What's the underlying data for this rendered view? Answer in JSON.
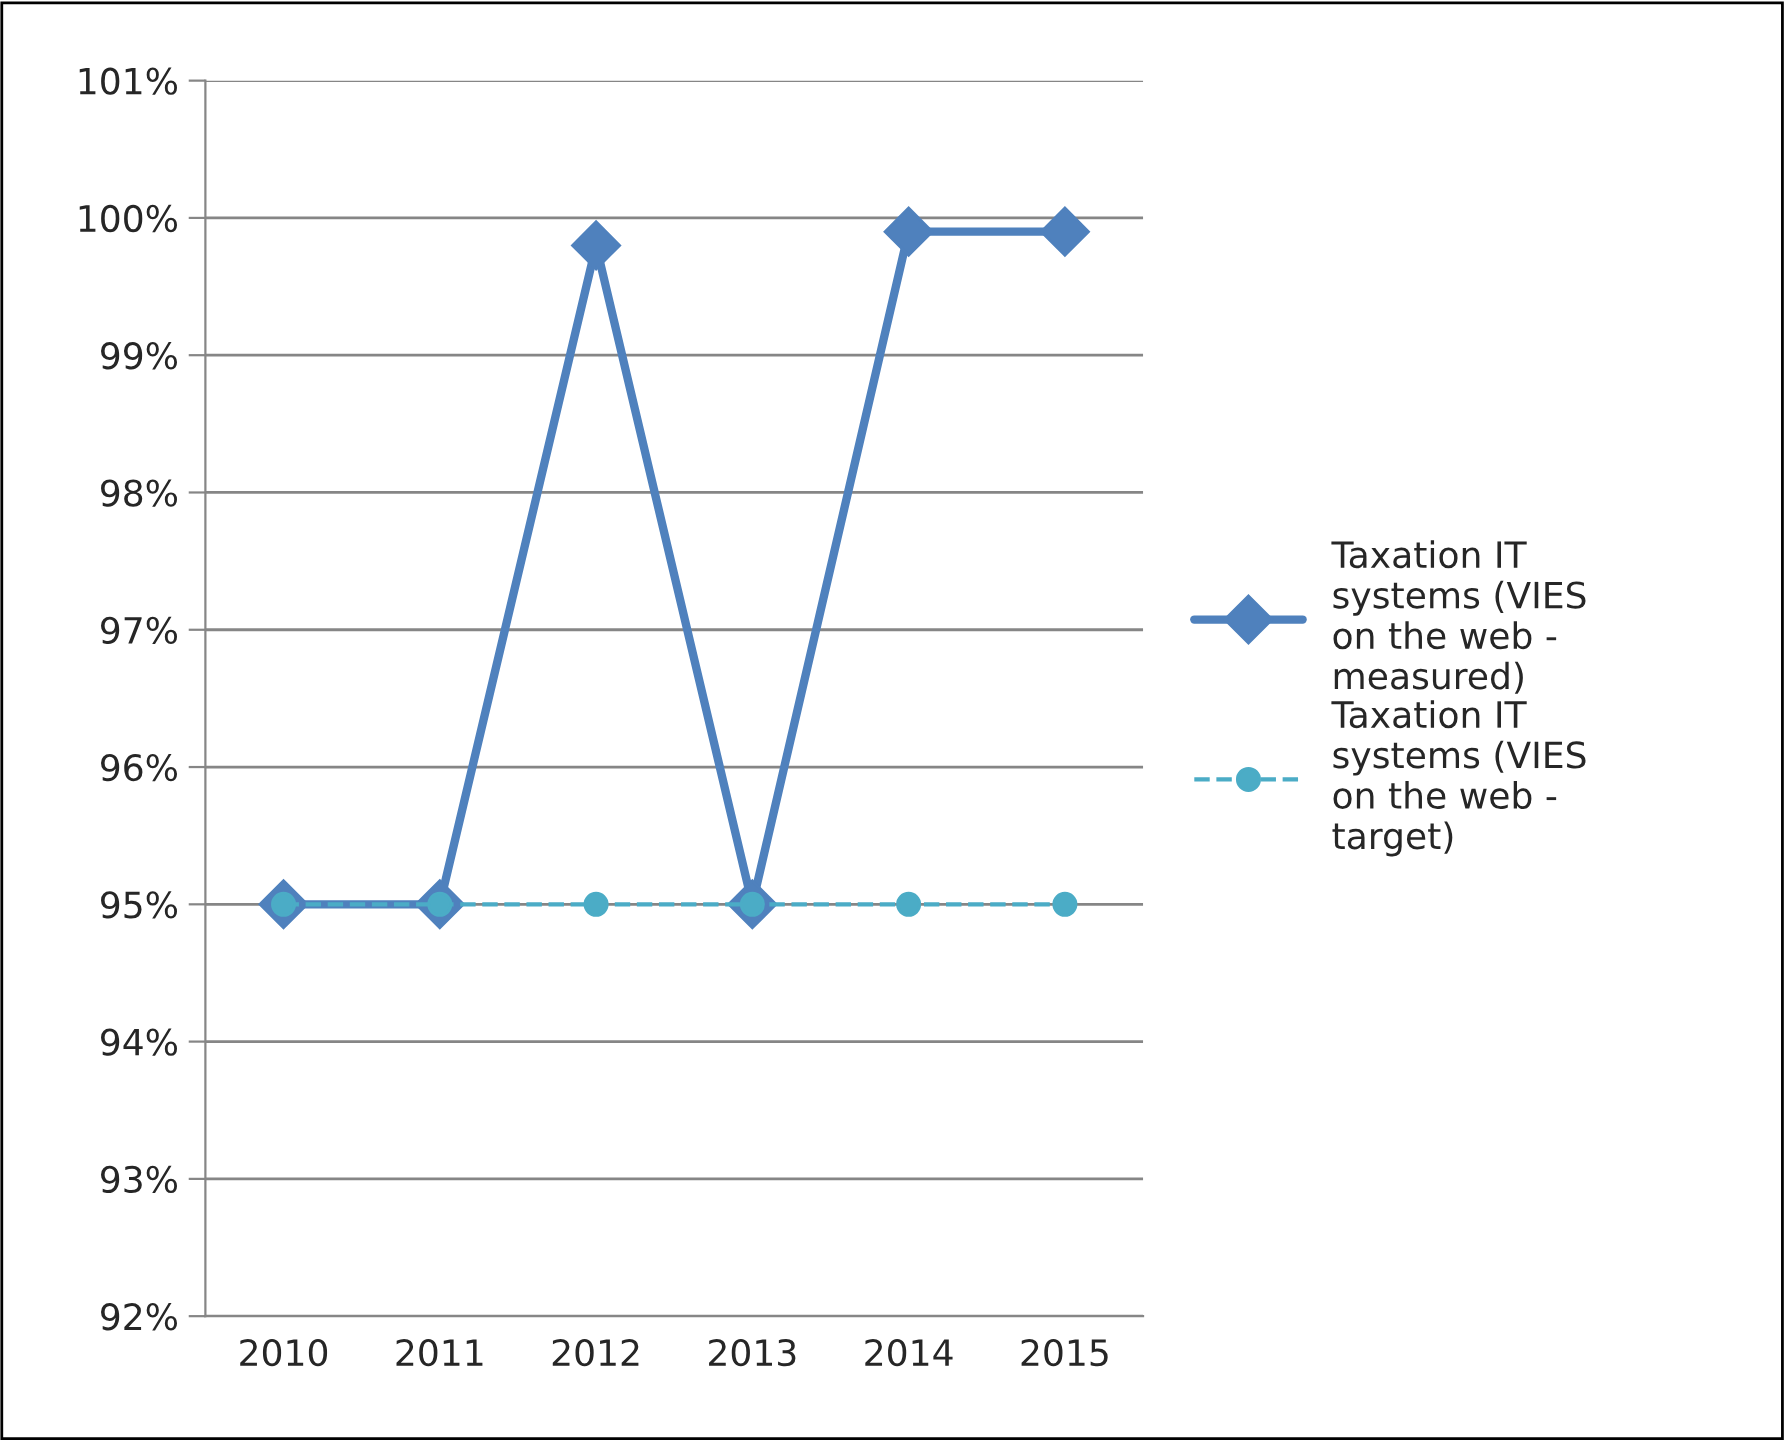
{
  "chart_data": {
    "type": "line",
    "categories": [
      "2010",
      "2011",
      "2012",
      "2013",
      "2014",
      "2015"
    ],
    "series": [
      {
        "name": "Taxation IT systems (VIES on the web - measured)",
        "color": "#4f81bd",
        "values": [
          95,
          95,
          99.8,
          95,
          99.9,
          99.9
        ],
        "marker": "diamond",
        "line_style": "solid"
      },
      {
        "name": "Taxation IT systems (VIES on the web - target)",
        "color": "#4bacc6",
        "values": [
          95,
          95,
          95,
          95,
          95,
          95
        ],
        "marker": "circle",
        "line_style": "dashed"
      }
    ],
    "ylim": [
      92,
      101
    ],
    "yticks": [
      {
        "value": 92,
        "label": "92%"
      },
      {
        "value": 93,
        "label": "93%"
      },
      {
        "value": 94,
        "label": "94%"
      },
      {
        "value": 95,
        "label": "95%"
      },
      {
        "value": 96,
        "label": "96%"
      },
      {
        "value": 97,
        "label": "97%"
      },
      {
        "value": 98,
        "label": "98%"
      },
      {
        "value": 99,
        "label": "99%"
      },
      {
        "value": 100,
        "label": "100%"
      },
      {
        "value": 101,
        "label": "101%"
      }
    ],
    "grid": "y",
    "legend": "right"
  }
}
